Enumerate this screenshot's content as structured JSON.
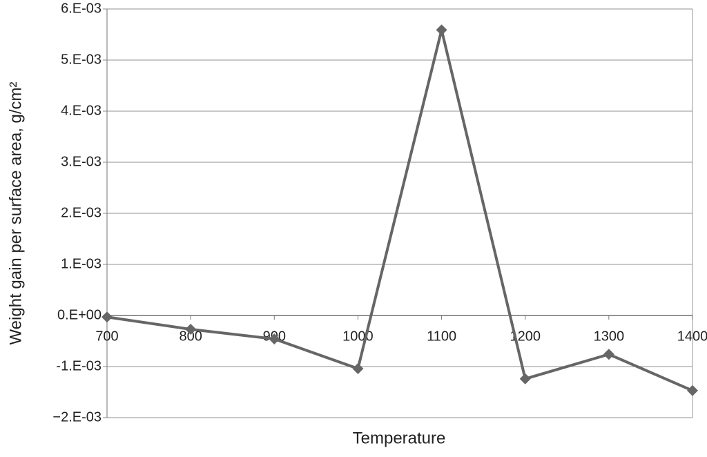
{
  "chart_data": {
    "type": "line",
    "x_label": "Temperature",
    "y_label": "Weight gain per surface area, g/cm²",
    "x": [
      700,
      800,
      900,
      1000,
      1100,
      1200,
      1300,
      1400
    ],
    "values": [
      -3e-05,
      -0.00027,
      -0.00046,
      -0.00104,
      0.00559,
      -0.00124,
      -0.00076,
      -0.00147
    ],
    "color": "#666666",
    "xlim": [
      700,
      1400
    ],
    "xticks": [
      700,
      800,
      900,
      1000,
      1100,
      1200,
      1300,
      1400
    ],
    "ylim": [
      -0.002,
      0.006
    ],
    "yticks": [
      {
        "value": -0.002,
        "label": "−2.E-03"
      },
      {
        "value": -0.001,
        "label": "-1.E-03"
      },
      {
        "value": 0,
        "label": "0.E+00"
      },
      {
        "value": 0.001,
        "label": "1.E-03"
      },
      {
        "value": 0.002,
        "label": "2.E-03"
      },
      {
        "value": 0.003,
        "label": "3.E-03"
      },
      {
        "value": 0.004,
        "label": "4.E-03"
      },
      {
        "value": 0.005,
        "label": "5.E-03"
      },
      {
        "value": 0.006,
        "label": "6.E-03"
      }
    ],
    "grid": true
  }
}
